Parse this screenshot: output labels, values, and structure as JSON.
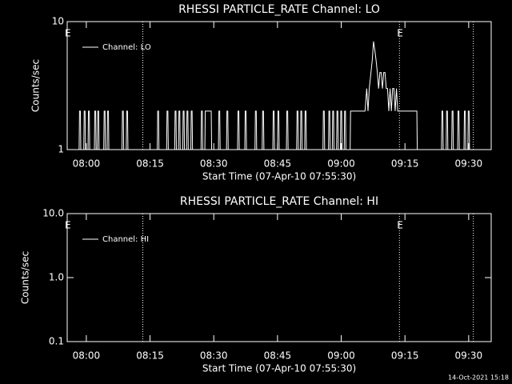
{
  "footer": "14-Oct-2021 15:18",
  "chart_data": [
    {
      "type": "line",
      "title": "RHESSI PARTICLE_RATE Channel: LO",
      "xlabel": "Start Time (07-Apr-10 07:55:30)",
      "ylabel": "Counts/sec",
      "log_y": true,
      "legend": "upper left",
      "xlim": [
        475.5,
        575.3
      ],
      "ylim": [
        1,
        10
      ],
      "yticks": [
        1,
        10
      ],
      "xticks": [
        {
          "value": 480,
          "label": "08:00"
        },
        {
          "value": 495,
          "label": "08:15"
        },
        {
          "value": 510,
          "label": "08:30"
        },
        {
          "value": 525,
          "label": "08:45"
        },
        {
          "value": 540,
          "label": "09:00"
        },
        {
          "value": 555,
          "label": "09:15"
        },
        {
          "value": 570,
          "label": "09:30"
        }
      ],
      "vlines": [
        493.3,
        553.7,
        571.1
      ],
      "annotations": [
        {
          "text": "E",
          "x": 475.5
        },
        {
          "text": "E",
          "x": 553.7
        }
      ],
      "series": [
        {
          "name": "Channel: LO",
          "color": "#ffffff",
          "x": [
            476.0,
            478.3,
            478.4,
            478.6,
            478.7,
            479.4,
            479.5,
            479.7,
            479.8,
            480.4,
            480.5,
            480.7,
            480.8,
            481.9,
            482.0,
            482.2,
            482.3,
            482.6,
            482.7,
            482.9,
            483.0,
            484.1,
            484.2,
            484.4,
            484.5,
            484.9,
            485.0,
            485.2,
            485.3,
            488.4,
            488.5,
            488.7,
            488.8,
            489.4,
            489.5,
            489.7,
            489.8,
            496.7,
            496.8,
            497.0,
            497.1,
            498.9,
            499.0,
            499.2,
            499.3,
            500.8,
            500.9,
            501.1,
            501.2,
            501.7,
            501.8,
            502.0,
            502.1,
            502.7,
            502.8,
            503.0,
            503.1,
            503.6,
            503.7,
            503.9,
            504.0,
            504.6,
            504.7,
            504.9,
            505.0,
            507.0,
            507.1,
            507.3,
            507.4,
            507.9,
            508.0,
            509.4,
            509.5,
            511.1,
            511.2,
            511.4,
            511.5,
            513.0,
            513.1,
            513.3,
            513.4,
            515.6,
            515.7,
            515.9,
            516.0,
            517.3,
            517.4,
            517.6,
            517.7,
            519.7,
            519.8,
            520.0,
            520.1,
            521.4,
            521.5,
            521.7,
            521.8,
            523.9,
            524.0,
            524.2,
            524.3,
            525.0,
            525.1,
            525.3,
            525.4,
            527.1,
            527.2,
            527.4,
            527.5,
            529.5,
            529.6,
            529.8,
            529.9,
            530.4,
            530.5,
            530.7,
            530.8,
            531.4,
            531.5,
            531.7,
            531.8,
            535.7,
            535.8,
            536.0,
            536.1,
            537.0,
            537.1,
            537.3,
            537.4,
            537.9,
            538.0,
            538.2,
            538.3,
            538.9,
            539.0,
            539.2,
            539.3,
            539.8,
            539.9,
            540.1,
            540.2,
            540.7,
            540.8,
            541.0,
            541.1,
            542.1,
            542.2,
            545.6,
            546.0,
            546.3,
            546.6,
            547.0,
            547.3,
            547.6,
            547.9,
            548.2,
            548.5,
            548.8,
            549.1,
            549.4,
            549.7,
            550.0,
            550.3,
            550.6,
            550.9,
            551.2,
            551.5,
            551.8,
            552.1,
            552.4,
            552.7,
            553.0,
            553.3,
            557.8,
            557.9,
            563.6,
            563.7,
            563.9,
            564.0,
            564.7,
            564.8,
            565.0,
            565.1,
            566.0,
            566.1,
            566.3,
            566.4,
            567.4,
            567.5,
            567.7,
            567.8,
            568.9,
            569.0,
            569.2,
            569.3,
            569.8,
            569.9,
            570.1,
            570.2,
            575.0
          ],
          "values": [
            1,
            1,
            2,
            2,
            1,
            1,
            2,
            2,
            1,
            1,
            2,
            2,
            1,
            1,
            2,
            2,
            1,
            1,
            2,
            2,
            1,
            1,
            2,
            2,
            1,
            1,
            2,
            2,
            1,
            1,
            2,
            2,
            1,
            1,
            2,
            2,
            1,
            1,
            2,
            2,
            1,
            1,
            2,
            2,
            1,
            1,
            2,
            2,
            1,
            1,
            2,
            2,
            1,
            1,
            2,
            2,
            1,
            1,
            2,
            2,
            1,
            1,
            2,
            2,
            1,
            1,
            2,
            2,
            1,
            1,
            2,
            2,
            1,
            1,
            2,
            2,
            1,
            1,
            2,
            2,
            1,
            1,
            2,
            2,
            1,
            1,
            2,
            2,
            1,
            1,
            2,
            2,
            1,
            1,
            2,
            2,
            1,
            1,
            2,
            2,
            1,
            1,
            2,
            2,
            1,
            1,
            2,
            2,
            1,
            1,
            2,
            2,
            1,
            1,
            2,
            2,
            1,
            1,
            2,
            2,
            1,
            1,
            2,
            2,
            1,
            1,
            2,
            2,
            1,
            1,
            2,
            2,
            1,
            1,
            2,
            2,
            1,
            1,
            2,
            2,
            1,
            1,
            2,
            2,
            1,
            1,
            2,
            2,
            3,
            2,
            3,
            4,
            5,
            7,
            6,
            5,
            4,
            3,
            4,
            4,
            3,
            4,
            4,
            3,
            3,
            2,
            3,
            2,
            3,
            3,
            2,
            3,
            2,
            2,
            1,
            1,
            2,
            2,
            1,
            1,
            2,
            2,
            1,
            1,
            2,
            2,
            1,
            1,
            2,
            2,
            1,
            1,
            2,
            2,
            1,
            1,
            2,
            2,
            1,
            1
          ]
        }
      ]
    },
    {
      "type": "line",
      "title": "RHESSI PARTICLE_RATE Channel: HI",
      "xlabel": "Start Time (07-Apr-10 07:55:30)",
      "ylabel": "Counts/sec",
      "log_y": true,
      "legend": "upper left",
      "xlim": [
        475.5,
        575.3
      ],
      "ylim": [
        0.1,
        10
      ],
      "yticks": [
        0.1,
        {
          "value": 1,
          "label": "1.0"
        },
        {
          "value": 10,
          "label": "10.0"
        }
      ],
      "xticks": [
        {
          "value": 480,
          "label": "08:00"
        },
        {
          "value": 495,
          "label": "08:15"
        },
        {
          "value": 510,
          "label": "08:30"
        },
        {
          "value": 525,
          "label": "08:45"
        },
        {
          "value": 540,
          "label": "09:00"
        },
        {
          "value": 555,
          "label": "09:15"
        },
        {
          "value": 570,
          "label": "09:30"
        }
      ],
      "vlines": [
        493.3,
        553.7,
        571.1
      ],
      "annotations": [
        {
          "text": "E",
          "x": 475.5
        },
        {
          "text": "E",
          "x": 553.7
        }
      ],
      "series": [
        {
          "name": "Channel: HI",
          "color": "#ffffff",
          "x": [],
          "values": []
        }
      ]
    }
  ]
}
